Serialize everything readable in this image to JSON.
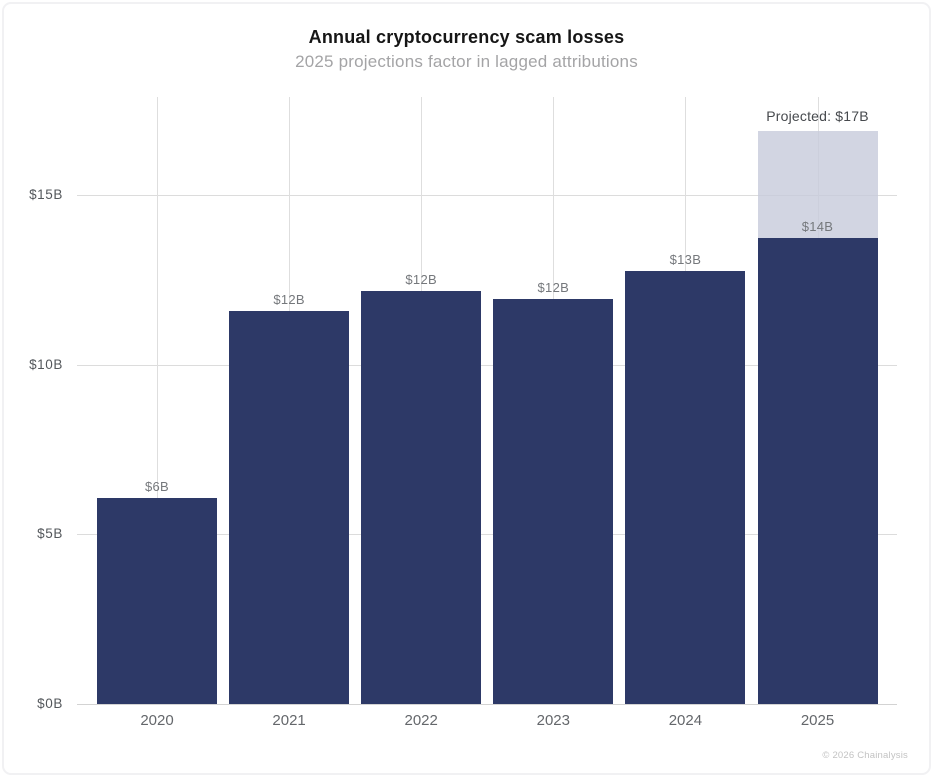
{
  "chart_data": {
    "type": "bar",
    "title": "Annual cryptocurrency scam losses",
    "subtitle": "2025 projections factor in lagged attributions",
    "categories": [
      "2020",
      "2021",
      "2022",
      "2023",
      "2024",
      "2025"
    ],
    "values": [
      6.07,
      11.58,
      12.17,
      11.94,
      12.76,
      13.73
    ],
    "bar_labels": [
      "$6B",
      "$12B",
      "$12B",
      "$12B",
      "$13B",
      "$14B"
    ],
    "projection": {
      "category": "2025",
      "index": 5,
      "total": 16.89,
      "label": "Projected: $17B"
    },
    "yticks": [
      {
        "value": 0,
        "label": "$0B"
      },
      {
        "value": 5,
        "label": "$5B"
      },
      {
        "value": 10,
        "label": "$10B"
      },
      {
        "value": 15,
        "label": "$15B"
      }
    ],
    "ylim": [
      0,
      17.9
    ],
    "xlabel": "",
    "ylabel": "",
    "grid": true,
    "legend_position": "none",
    "colors": {
      "bar": "#2d3967",
      "projection_fill": "#d2d5e2",
      "grid": "#dcdcdc",
      "title": "#161616",
      "subtitle": "#a4a4a6"
    }
  },
  "footer": {
    "credit": "© 2026 Chainalysis"
  }
}
